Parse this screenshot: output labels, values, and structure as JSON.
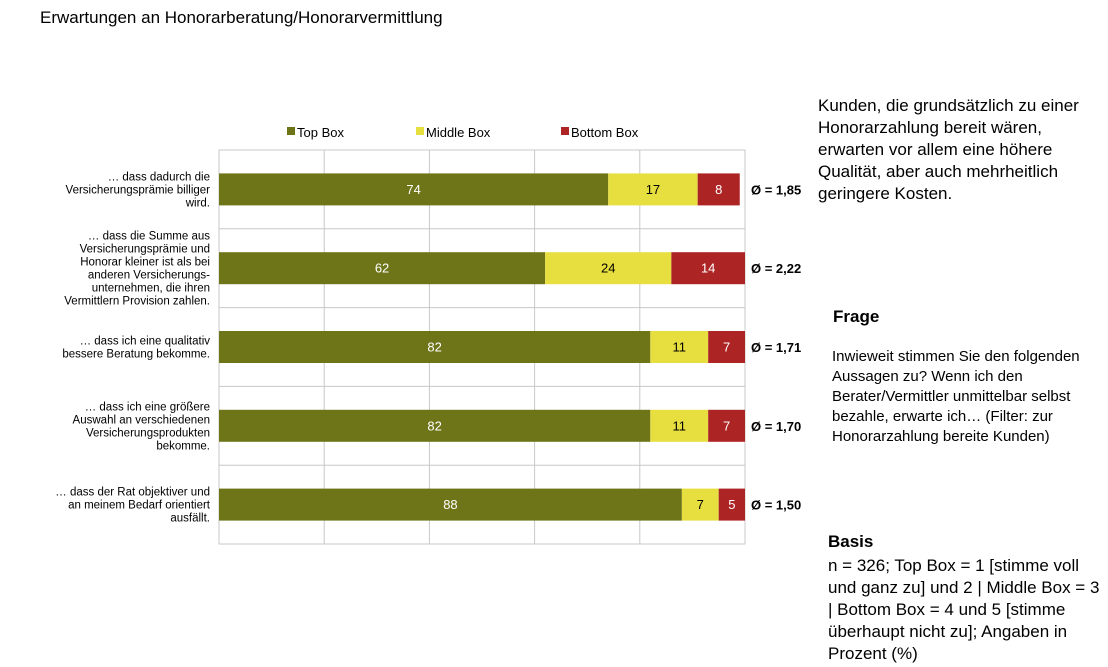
{
  "title": "Erwartungen an Honorarberatung/Honorarvermittlung",
  "intro_text": "Kunden, die grundsätzlich zu einer Honorarzahlung bereit wären, erwarten vor allem eine höhere Qualität, aber auch mehrheitlich geringere Kosten.",
  "frage": {
    "heading": "Frage",
    "text": "Inwieweit stimmen Sie den folgenden Aussagen zu? Wenn ich den Berater/Vermittler unmittelbar selbst bezahle, erwarte ich… (Filter: zur Honorarzahlung bereite Kunden)"
  },
  "basis": {
    "heading": "Basis",
    "text": "n = 326; Top Box = 1 [stimme voll und ganz zu] und 2 | Middle Box = 3 | Bottom Box = 4 und 5 [stimme überhaupt nicht zu]; Angaben in Prozent (%)"
  },
  "chart_data": {
    "type": "bar",
    "orientation": "horizontal",
    "stacked": true,
    "grid": true,
    "legend_position": "top",
    "categories": [
      [
        "… dass dadurch die",
        "Versicherungsprämie billiger",
        "wird."
      ],
      [
        "… dass die Summe aus",
        "Versicherungsprämie und",
        "Honorar kleiner ist als bei",
        "anderen Versicherungs-",
        "unternehmen, die ihren",
        "Vermittlern Provision zahlen."
      ],
      [
        "… dass ich eine qualitativ",
        "bessere Beratung bekomme."
      ],
      [
        "… dass ich eine größere",
        "Auswahl an verschiedenen",
        "Versicherungsprodukten",
        "bekomme."
      ],
      [
        "… dass der Rat objektiver und",
        "an meinem Bedarf orientiert",
        "ausfällt."
      ]
    ],
    "series": [
      {
        "name": "Top Box",
        "color": "#6e7519",
        "label_color": "#ffffff",
        "values": [
          74,
          62,
          82,
          82,
          88
        ]
      },
      {
        "name": "Middle Box",
        "color": "#e7df40",
        "label_color": "#000000",
        "values": [
          17,
          24,
          11,
          11,
          7
        ]
      },
      {
        "name": "Bottom Box",
        "color": "#ad2425",
        "label_color": "#ffffff",
        "values": [
          8,
          14,
          7,
          7,
          5
        ]
      }
    ],
    "averages": [
      "Ø = 1,85",
      "Ø = 2,22",
      "Ø = 1,71",
      "Ø = 1,70",
      "Ø = 1,50"
    ]
  }
}
